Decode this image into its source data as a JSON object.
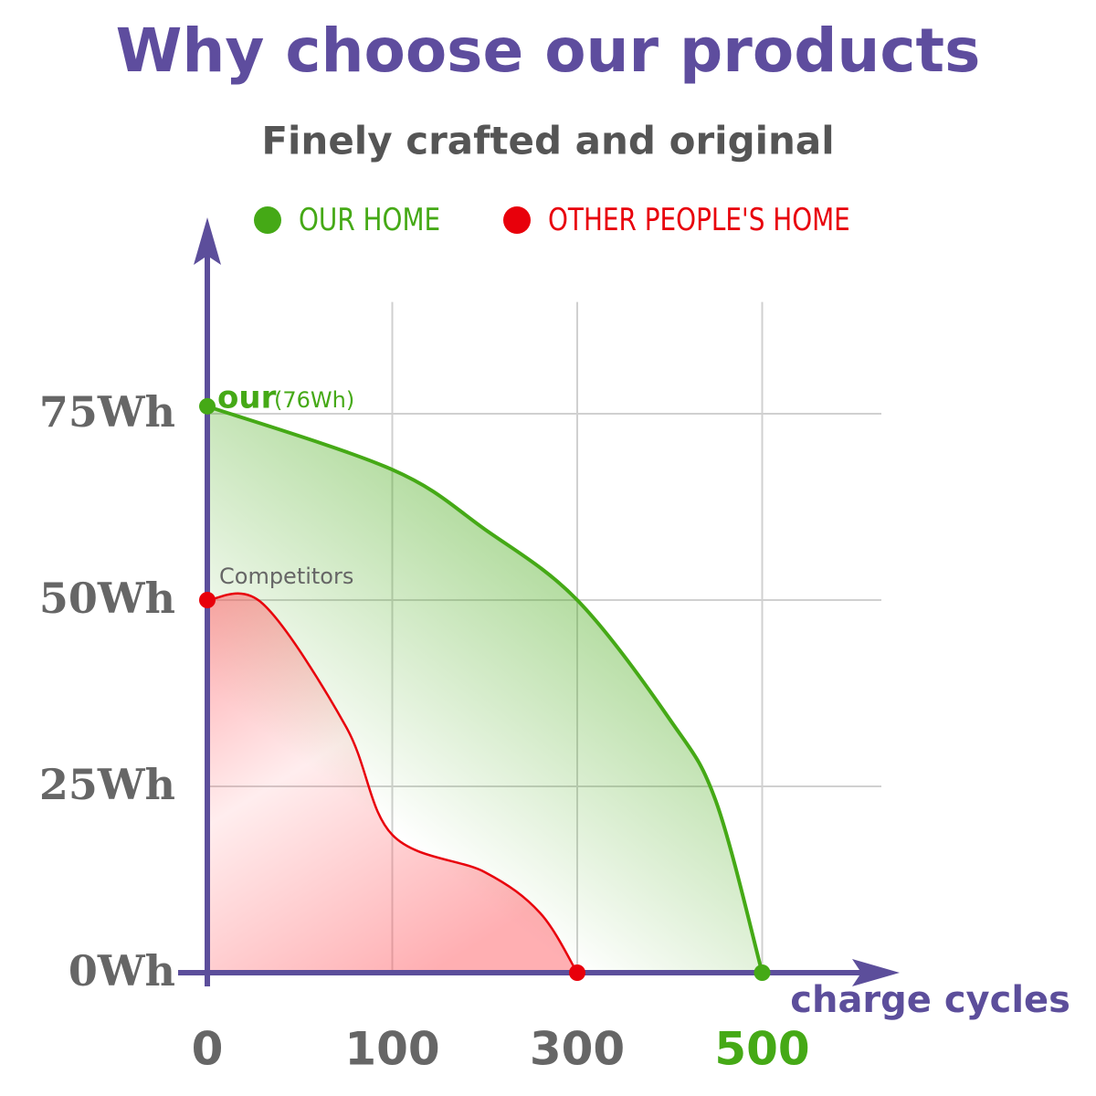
{
  "chart_data": {
    "type": "line",
    "title": "Why choose our products",
    "subtitle": "Finely crafted and original",
    "x_label": "charge cycles",
    "xticks": [
      0,
      100,
      300,
      500
    ],
    "ylim": [
      0,
      90
    ],
    "yticks": [
      {
        "value": 0,
        "label": "0Wh"
      },
      {
        "value": 25,
        "label": "25Wh"
      },
      {
        "value": 50,
        "label": "50Wh"
      },
      {
        "value": 75,
        "label": "75Wh"
      }
    ],
    "grid": true,
    "series": [
      {
        "name": "OUR HOME",
        "color": "#45a916",
        "x": [
          0,
          100,
          200,
          300,
          400,
          450,
          500
        ],
        "values": [
          76,
          67.5,
          59.5,
          50,
          34,
          23,
          0
        ]
      },
      {
        "name": "OTHER PEOPLE'S HOME",
        "color": "#e8000b",
        "x": [
          0,
          30,
          75,
          100,
          200,
          260,
          300
        ],
        "values": [
          50,
          49.5,
          33,
          18.5,
          13.5,
          8,
          0
        ]
      }
    ],
    "annotations": [
      {
        "text": "our",
        "subtext": "(76Wh)"
      },
      {
        "text": "Competitors"
      }
    ]
  }
}
